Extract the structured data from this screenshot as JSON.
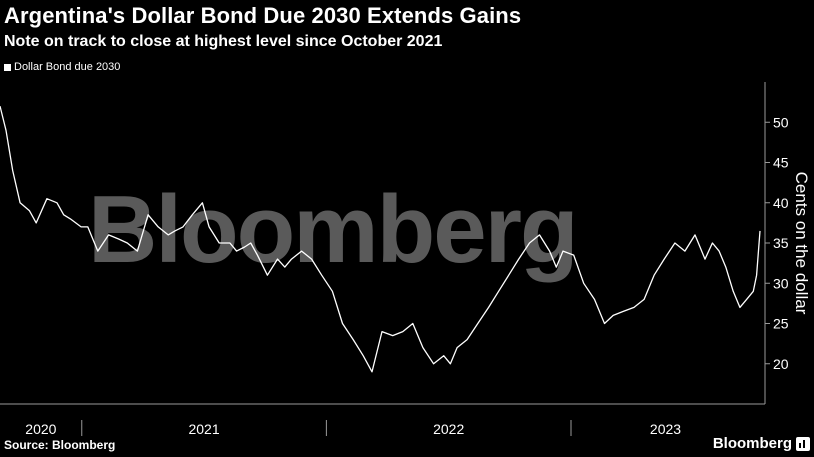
{
  "header": {
    "title": "Argentina's Dollar Bond Due 2030 Extends Gains",
    "subtitle": "Note on track to close at highest level since October 2021"
  },
  "footer": {
    "source": "Source: Bloomberg",
    "brand": "Bloomberg",
    "brand_icon": "bloomberg-chart-icon"
  },
  "watermark": "Bloomberg",
  "colors": {
    "background": "#000000",
    "line": "#ffffff",
    "watermark": "#5a5a5a",
    "axis": "#9a9a9a"
  },
  "chart_data": {
    "type": "line",
    "title": "Argentina's Dollar Bond Due 2030 Extends Gains",
    "subtitle": "Note on track to close at highest level since October 2021",
    "ylabel": "Cents on the dollar",
    "y_axis_position": "right",
    "ylim": [
      15,
      55
    ],
    "yticks": [
      "20",
      "25",
      "30",
      "35",
      "40",
      "45",
      "50"
    ],
    "xlim": [
      "2020-09-01",
      "2023-10-10"
    ],
    "xticks": [
      "2020",
      "2021",
      "2022",
      "2023"
    ],
    "grid": false,
    "legend_position": "top-left",
    "series": [
      {
        "name": "Dollar Bond due 2030",
        "color": "#ffffff",
        "x": [
          "2020-09-01",
          "2020-09-10",
          "2020-09-20",
          "2020-10-01",
          "2020-10-15",
          "2020-10-25",
          "2020-11-10",
          "2020-11-25",
          "2020-12-05",
          "2020-12-15",
          "2020-12-31",
          "2021-01-10",
          "2021-01-25",
          "2021-02-10",
          "2021-02-25",
          "2021-03-10",
          "2021-03-25",
          "2021-04-10",
          "2021-04-25",
          "2021-05-10",
          "2021-05-20",
          "2021-06-01",
          "2021-06-15",
          "2021-06-30",
          "2021-07-10",
          "2021-07-25",
          "2021-08-10",
          "2021-08-20",
          "2021-09-01",
          "2021-09-10",
          "2021-09-20",
          "2021-10-05",
          "2021-10-20",
          "2021-10-31",
          "2021-11-10",
          "2021-11-25",
          "2021-12-10",
          "2021-12-25",
          "2022-01-10",
          "2022-01-25",
          "2022-02-10",
          "2022-02-25",
          "2022-03-10",
          "2022-03-25",
          "2022-04-10",
          "2022-04-25",
          "2022-05-10",
          "2022-05-25",
          "2022-06-10",
          "2022-06-25",
          "2022-07-05",
          "2022-07-15",
          "2022-07-30",
          "2022-08-15",
          "2022-08-31",
          "2022-09-15",
          "2022-09-30",
          "2022-10-15",
          "2022-10-31",
          "2022-11-15",
          "2022-11-30",
          "2022-12-10",
          "2022-12-20",
          "2023-01-05",
          "2023-01-20",
          "2023-02-05",
          "2023-02-20",
          "2023-03-05",
          "2023-03-20",
          "2023-04-05",
          "2023-04-20",
          "2023-05-05",
          "2023-05-20",
          "2023-06-05",
          "2023-06-20",
          "2023-07-05",
          "2023-07-20",
          "2023-07-31",
          "2023-08-10",
          "2023-08-20",
          "2023-08-31",
          "2023-09-10",
          "2023-09-20",
          "2023-09-30",
          "2023-10-05",
          "2023-10-10"
        ],
        "y": [
          52,
          49,
          44,
          40,
          39,
          37.5,
          40.5,
          40,
          38.5,
          38,
          37,
          37,
          34,
          36,
          35.5,
          35,
          34,
          38.5,
          37,
          36,
          36.5,
          37,
          38.5,
          40,
          37,
          35,
          35,
          34,
          34.5,
          35,
          33.5,
          31,
          33,
          32,
          33,
          34,
          33,
          31,
          29,
          25,
          23,
          21,
          19,
          24,
          23.5,
          24,
          25,
          22,
          20,
          21,
          20,
          22,
          23,
          25,
          27,
          29,
          31,
          33,
          35,
          36,
          34,
          32,
          34,
          33.5,
          30,
          28,
          25,
          26,
          26.5,
          27,
          28,
          31,
          33,
          35,
          34,
          36,
          33,
          35,
          34,
          32,
          29,
          27,
          28,
          29,
          31,
          36.5
        ]
      }
    ]
  }
}
